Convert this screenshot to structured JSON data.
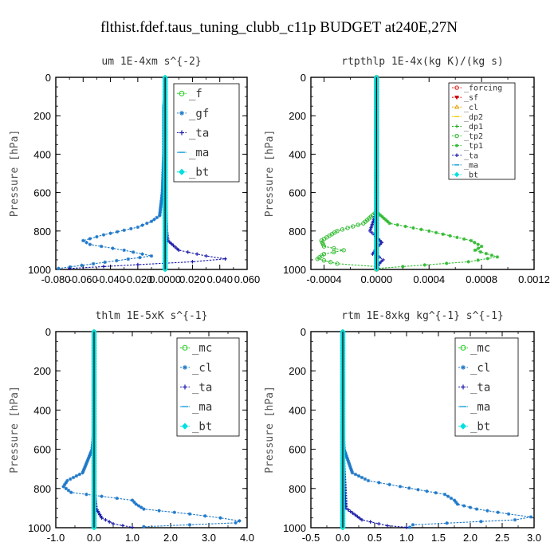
{
  "figure": {
    "title": "flthist.fdef.taus_tuning_clubb_c11p  BUDGET at240E,27N"
  },
  "chart_data": [
    {
      "type": "line",
      "title": "um  1E-4xm s^{-2}",
      "ylabel": "Pressure [hPa]",
      "xlim": [
        -0.08,
        0.06
      ],
      "ylim": [
        1000,
        0
      ],
      "xticks": [
        -0.08,
        -0.06,
        -0.04,
        -0.02,
        0.0,
        0.02,
        0.04,
        0.06
      ],
      "xtick_labels": [
        "-0.080",
        "-0.060",
        "-0.040",
        "-0.020",
        "0.0000",
        "0.020",
        "0.040",
        "0.060"
      ],
      "yticks": [
        0,
        200,
        400,
        600,
        800,
        1000
      ],
      "legend": {
        "position": "top-right",
        "font": 14
      },
      "series": [
        {
          "name": "_f",
          "color": "#22cc22",
          "marker": "circle",
          "x": [
            0,
            0,
            0,
            0,
            0,
            0,
            0,
            0,
            0,
            0,
            0
          ],
          "y": [
            0,
            100,
            200,
            300,
            400,
            500,
            600,
            700,
            800,
            900,
            1000
          ]
        },
        {
          "name": "_gf",
          "color": "#1e78c8",
          "marker": "star",
          "x": [
            0,
            0,
            -0.001,
            -0.001,
            -0.001,
            -0.001,
            -0.002,
            -0.004,
            -0.01,
            -0.02,
            -0.045,
            -0.06,
            -0.055,
            -0.03,
            -0.01,
            -0.078
          ],
          "y": [
            0,
            100,
            150,
            200,
            300,
            400,
            600,
            720,
            750,
            780,
            820,
            850,
            870,
            900,
            930,
            995
          ]
        },
        {
          "name": "_ta",
          "color": "#1a1aaa",
          "marker": "plus",
          "x": [
            0,
            0,
            0,
            0,
            0.001,
            0.002,
            0.01,
            0.03,
            0.044,
            0.02,
            -0.02,
            -0.07
          ],
          "y": [
            0,
            200,
            400,
            600,
            800,
            850,
            900,
            930,
            945,
            960,
            975,
            995
          ]
        },
        {
          "name": "_ma",
          "color": "#1aa0d8",
          "marker": "dash",
          "x": [
            0,
            0,
            0,
            0,
            0,
            0
          ],
          "y": [
            0,
            200,
            400,
            600,
            800,
            1000
          ]
        },
        {
          "name": "_bt",
          "color": "#00e0e0",
          "marker": "diamond",
          "x": [
            0,
            0,
            0,
            0,
            0,
            0
          ],
          "y": [
            0,
            200,
            400,
            600,
            800,
            1000
          ]
        }
      ]
    },
    {
      "type": "line",
      "title": "rtpthlp  1E-4x(kg K)/(kg s)",
      "ylabel": "Pressure [hPa]",
      "xlim": [
        -0.0005,
        0.0012
      ],
      "ylim": [
        1000,
        0
      ],
      "xticks": [
        -0.0004,
        0.0,
        0.0004,
        0.0008,
        0.0012
      ],
      "xtick_labels": [
        "-0.0004",
        "0.0000",
        "0.0004",
        "0.0008",
        "0.0012"
      ],
      "yticks": [
        0,
        200,
        400,
        600,
        800,
        1000
      ],
      "legend": {
        "position": "top-right",
        "font": 10
      },
      "series": [
        {
          "name": "_forcing",
          "color": "#dd2222",
          "marker": "circle",
          "x": [
            0,
            0,
            0,
            0,
            0,
            0
          ],
          "y": [
            0,
            200,
            400,
            600,
            800,
            1000
          ]
        },
        {
          "name": "_sf",
          "color": "#cc0000",
          "marker": "down-triangle",
          "x": [
            0,
            0,
            0,
            0,
            0,
            0
          ],
          "y": [
            0,
            200,
            400,
            600,
            800,
            1000
          ]
        },
        {
          "name": "_cl",
          "color": "#e8a000",
          "marker": "up-triangle",
          "x": [
            0,
            0,
            0,
            0,
            0,
            0
          ],
          "y": [
            0,
            200,
            400,
            600,
            800,
            1000
          ]
        },
        {
          "name": "_dp2",
          "color": "#eecc00",
          "marker": "dash",
          "x": [
            0,
            0,
            0,
            0,
            0,
            0
          ],
          "y": [
            0,
            200,
            400,
            600,
            800,
            1000
          ]
        },
        {
          "name": "_dp1",
          "color": "#22aa22",
          "marker": "plus",
          "x": [
            0,
            0,
            0,
            0,
            0,
            0
          ],
          "y": [
            0,
            200,
            400,
            600,
            800,
            1000
          ]
        },
        {
          "name": "_tp2",
          "color": "#33bb33",
          "marker": "circle",
          "x": [
            0,
            0,
            -0.0001,
            -0.0003,
            -0.00042,
            -0.0004,
            -0.00025,
            -0.0004,
            -0.00045,
            -0.0003,
            0.0
          ],
          "y": [
            0,
            700,
            760,
            800,
            850,
            880,
            900,
            920,
            945,
            970,
            985
          ]
        },
        {
          "name": "_tp1",
          "color": "#33bb33",
          "marker": "star",
          "x": [
            0,
            0,
            0.0001,
            0.0004,
            0.00072,
            0.0008,
            0.00075,
            0.00092,
            0.0007,
            0.0002,
            0.0
          ],
          "y": [
            0,
            700,
            760,
            800,
            850,
            880,
            900,
            935,
            960,
            985,
            995
          ]
        },
        {
          "name": "_ta",
          "color": "#1a1aaa",
          "marker": "plus",
          "x": [
            0,
            0,
            -5e-05,
            0.0,
            4e-05,
            0.0,
            -3e-05,
            2e-05,
            5e-05,
            2e-05,
            0.0
          ],
          "y": [
            0,
            700,
            800,
            830,
            860,
            890,
            920,
            935,
            950,
            970,
            1000
          ]
        },
        {
          "name": "_ma",
          "color": "#1aa0d8",
          "marker": "dash",
          "x": [
            0,
            0,
            0,
            0,
            0,
            0
          ],
          "y": [
            0,
            200,
            400,
            600,
            800,
            1000
          ]
        },
        {
          "name": "_bt",
          "color": "#00e0e0",
          "marker": "diamond",
          "x": [
            0,
            0,
            0,
            0,
            0,
            0
          ],
          "y": [
            0,
            200,
            400,
            600,
            800,
            1000
          ]
        }
      ]
    },
    {
      "type": "line",
      "title": "thlm  1E-5xK s^{-1}",
      "ylabel": "Pressure [hPa]",
      "xlim": [
        -1.0,
        4.0
      ],
      "ylim": [
        1000,
        0
      ],
      "xticks": [
        -1.0,
        0.0,
        1.0,
        2.0,
        3.0,
        4.0
      ],
      "xtick_labels": [
        "-1.0",
        "0.0",
        "1.0",
        "2.0",
        "3.0",
        "4.0"
      ],
      "yticks": [
        0,
        200,
        400,
        600,
        800,
        1000
      ],
      "legend": {
        "position": "top-right",
        "font": 14
      },
      "series": [
        {
          "name": "_mc",
          "color": "#22cc22",
          "marker": "circle",
          "x": [
            0,
            0,
            0,
            0,
            0,
            0,
            0,
            0,
            0,
            0,
            0
          ],
          "y": [
            0,
            100,
            200,
            300,
            400,
            500,
            600,
            700,
            800,
            900,
            1000
          ]
        },
        {
          "name": "_cl",
          "color": "#1e78c8",
          "marker": "star",
          "x": [
            0,
            0,
            0,
            0,
            0,
            0,
            -0.05,
            -0.3,
            -0.7,
            -0.8,
            -0.6,
            0.2,
            1.0,
            1.1,
            1.3,
            2.5,
            3.3,
            3.8,
            3.7,
            1.3
          ],
          "y": [
            0,
            100,
            200,
            300,
            400,
            500,
            600,
            720,
            760,
            790,
            820,
            840,
            860,
            880,
            905,
            930,
            950,
            965,
            975,
            995
          ]
        },
        {
          "name": "_ta",
          "color": "#1a1aaa",
          "marker": "plus",
          "x": [
            0,
            0,
            0,
            0,
            0,
            0.05,
            0.2,
            0.5,
            1.0
          ],
          "y": [
            0,
            200,
            400,
            600,
            800,
            900,
            950,
            980,
            998
          ]
        },
        {
          "name": "_ma",
          "color": "#1aa0d8",
          "marker": "dash",
          "x": [
            0,
            0,
            0,
            0,
            0,
            0
          ],
          "y": [
            0,
            200,
            400,
            600,
            800,
            1000
          ]
        },
        {
          "name": "_bt",
          "color": "#00e0e0",
          "marker": "diamond",
          "x": [
            0,
            0,
            0,
            0,
            0,
            0
          ],
          "y": [
            0,
            200,
            400,
            600,
            800,
            1000
          ]
        }
      ]
    },
    {
      "type": "line",
      "title": "rtm  1E-8xkg kg^{-1} s^{-1}",
      "ylabel": "Pressure [hPa]",
      "xlim": [
        -0.5,
        3.0
      ],
      "ylim": [
        1000,
        0
      ],
      "xticks": [
        -0.5,
        0.0,
        0.5,
        1.0,
        1.5,
        2.0,
        2.5,
        3.0
      ],
      "xtick_labels": [
        "-0.5",
        "0.0",
        "0.5",
        "1.0",
        "1.5",
        "2.0",
        "2.5",
        "3.0"
      ],
      "yticks": [
        0,
        200,
        400,
        600,
        800,
        1000
      ],
      "legend": {
        "position": "top-right",
        "font": 14
      },
      "series": [
        {
          "name": "_mc",
          "color": "#22cc22",
          "marker": "circle",
          "x": [
            0,
            0,
            0,
            0,
            0,
            0,
            0,
            0,
            0,
            0,
            0
          ],
          "y": [
            0,
            100,
            200,
            300,
            400,
            500,
            600,
            700,
            800,
            900,
            1000
          ]
        },
        {
          "name": "_cl",
          "color": "#1e78c8",
          "marker": "star",
          "x": [
            0,
            0,
            0,
            0,
            0,
            0,
            0.02,
            0.15,
            0.4,
            0.9,
            1.6,
            1.75,
            1.8,
            2.1,
            2.6,
            2.95,
            2.7,
            1.1,
            1.05
          ],
          "y": [
            0,
            100,
            200,
            300,
            400,
            500,
            600,
            720,
            760,
            790,
            830,
            860,
            880,
            905,
            930,
            945,
            960,
            985,
            998
          ]
        },
        {
          "name": "_ta",
          "color": "#1a1aaa",
          "marker": "plus",
          "x": [
            0,
            0,
            0,
            0,
            0.05,
            0.3,
            0.7,
            1.0
          ],
          "y": [
            0,
            200,
            400,
            600,
            900,
            960,
            990,
            998
          ]
        },
        {
          "name": "_ma",
          "color": "#1aa0d8",
          "marker": "dash",
          "x": [
            0,
            0,
            0,
            0,
            0,
            0
          ],
          "y": [
            0,
            200,
            400,
            600,
            800,
            1000
          ]
        },
        {
          "name": "_bt",
          "color": "#00e0e0",
          "marker": "diamond",
          "x": [
            0,
            0,
            0,
            0,
            0,
            0
          ],
          "y": [
            0,
            200,
            400,
            600,
            800,
            1000
          ]
        }
      ]
    }
  ]
}
